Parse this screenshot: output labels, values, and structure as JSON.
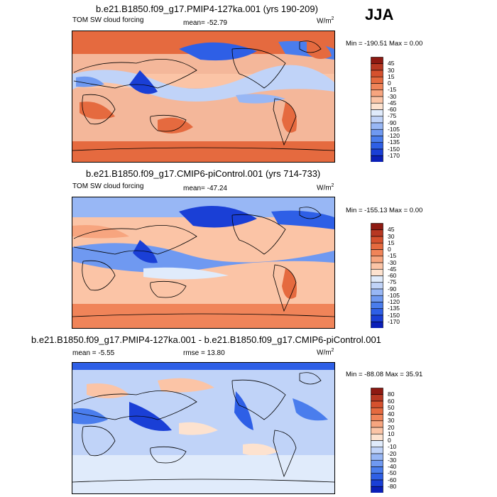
{
  "season": "JJA",
  "colors": {
    "blues": [
      "#0b0b8c",
      "#0a1fb8",
      "#1a3fd6",
      "#2e5fe6",
      "#4a7ded",
      "#6f99f1",
      "#98b7f5",
      "#c0d3f8",
      "#e0ebfb"
    ],
    "reds": [
      "#fde2cf",
      "#fbc4a6",
      "#f7a57f",
      "#f08459",
      "#e56a3f",
      "#d5512e",
      "#b73822",
      "#8e1a12"
    ],
    "land_outline": "#000000"
  },
  "panels": [
    {
      "title": "b.e21.B1850.f09_g17.PMIP4-127ka.001 (yrs 190-209)",
      "left_label": "TOM SW cloud forcing",
      "center_label": "mean= -52.79",
      "units": "W/m",
      "units_exp": "2",
      "minmax": "Min = -190.51 Max =   0.00",
      "colorbar_ticks": [
        "45",
        "30",
        "15",
        "0",
        "-15",
        "-30",
        "-45",
        "-60",
        "-75",
        "-90",
        "-105",
        "-120",
        "-135",
        "-150",
        "-170"
      ]
    },
    {
      "title": "b.e21.B1850.f09_g17.CMIP6-piControl.001 (yrs 714-733)",
      "left_label": "TOM SW cloud forcing",
      "center_label": "mean= -47.24",
      "units": "W/m",
      "units_exp": "2",
      "minmax": "Min = -155.13 Max =   0.00",
      "colorbar_ticks": [
        "45",
        "30",
        "15",
        "0",
        "-15",
        "-30",
        "-45",
        "-60",
        "-75",
        "-90",
        "-105",
        "-120",
        "-135",
        "-150",
        "-170"
      ]
    },
    {
      "title": "b.e21.B1850.f09_g17.PMIP4-127ka.001 - b.e21.B1850.f09_g17.CMIP6-piControl.001",
      "left_label": "mean =  -5.55",
      "center_label": "rmse =  13.80",
      "units": "W/m",
      "units_exp": "2",
      "minmax": "Min = -88.08 Max =  35.91",
      "colorbar_ticks": [
        "80",
        "60",
        "50",
        "40",
        "30",
        "20",
        "10",
        "0",
        "-10",
        "-20",
        "-30",
        "-40",
        "-50",
        "-60",
        "-80"
      ]
    }
  ],
  "chart_data": {
    "type": "heatmap",
    "panel_count": 3,
    "colorbar_count": 3,
    "panel1_stats": {
      "mean": -52.79,
      "min": -190.51,
      "max": 0.0
    },
    "panel2_stats": {
      "mean": -47.24,
      "min": -155.13,
      "max": 0.0
    },
    "panel3_stats": {
      "mean": -5.55,
      "rmse": 13.8,
      "min": -88.08,
      "max": 35.91
    }
  }
}
